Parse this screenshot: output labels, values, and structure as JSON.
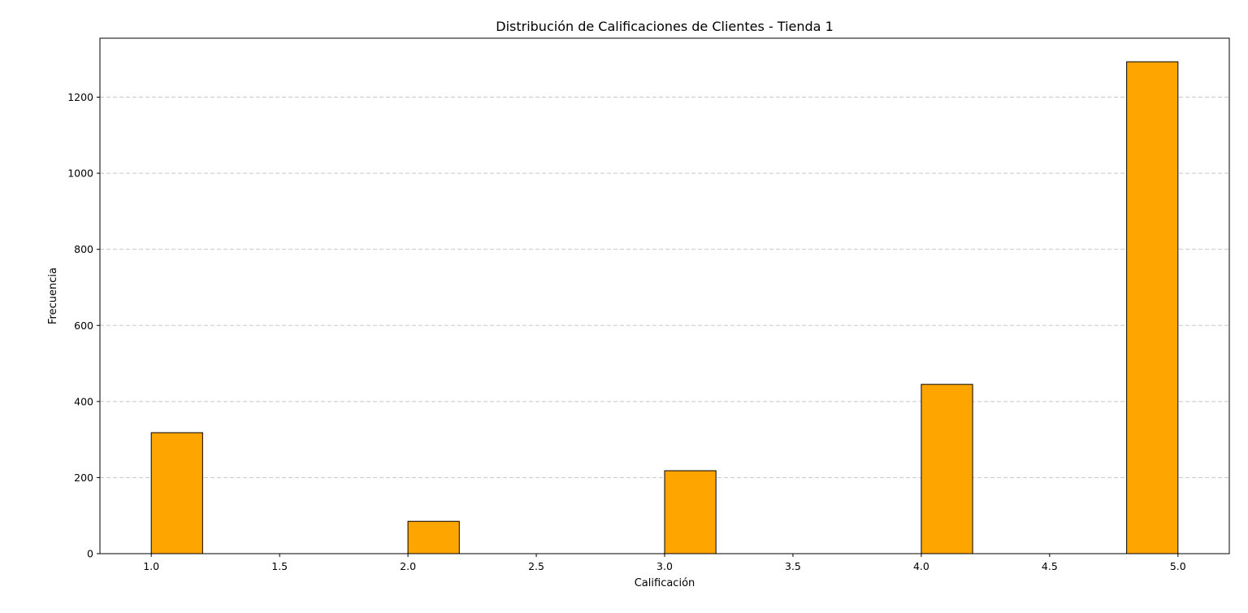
{
  "chart_data": {
    "type": "bar",
    "title": "Distribución de Calificaciones de Clientes - Tienda 1",
    "xlabel": "Calificación",
    "ylabel": "Frecuencia",
    "xlim": [
      0.8,
      5.2
    ],
    "ylim": [
      0,
      1355
    ],
    "bin_width": 0.2,
    "bins": [
      {
        "start": 1.0,
        "end": 1.2,
        "value": 318
      },
      {
        "start": 2.0,
        "end": 2.2,
        "value": 85
      },
      {
        "start": 3.0,
        "end": 3.2,
        "value": 218
      },
      {
        "start": 4.0,
        "end": 4.2,
        "value": 445
      },
      {
        "start": 4.8,
        "end": 5.0,
        "value": 1293
      }
    ],
    "x_ticks": [
      "1.0",
      "1.5",
      "2.0",
      "2.5",
      "3.0",
      "3.5",
      "4.0",
      "4.5",
      "5.0"
    ],
    "y_ticks": [
      "0",
      "200",
      "400",
      "600",
      "800",
      "1000",
      "1200"
    ],
    "grid": {
      "y": true,
      "x": false,
      "style": "dashed"
    },
    "colors": {
      "bar_fill": "#FFA500",
      "bar_edge": "#000000",
      "grid": "#c8c8c8"
    }
  }
}
